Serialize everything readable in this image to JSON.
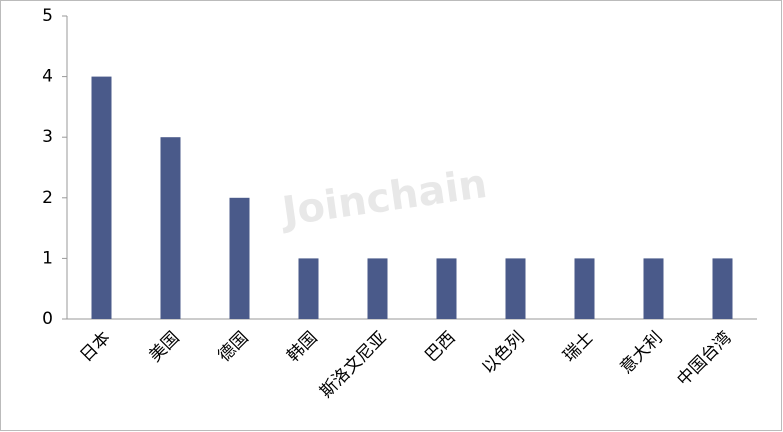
{
  "chart_data": {
    "type": "bar",
    "categories": [
      "日本",
      "美国",
      "德国",
      "韩国",
      "斯洛文尼亚",
      "巴西",
      "以色列",
      "瑞士",
      "意大利",
      "中国台湾"
    ],
    "values": [
      4,
      3,
      2,
      1,
      1,
      1,
      1,
      1,
      1,
      1
    ],
    "color": "#4a5a8a",
    "ylim": [
      0,
      5
    ],
    "yticks": [
      0,
      1,
      2,
      3,
      4,
      5
    ],
    "grid": false,
    "watermark": "Joinchain"
  }
}
